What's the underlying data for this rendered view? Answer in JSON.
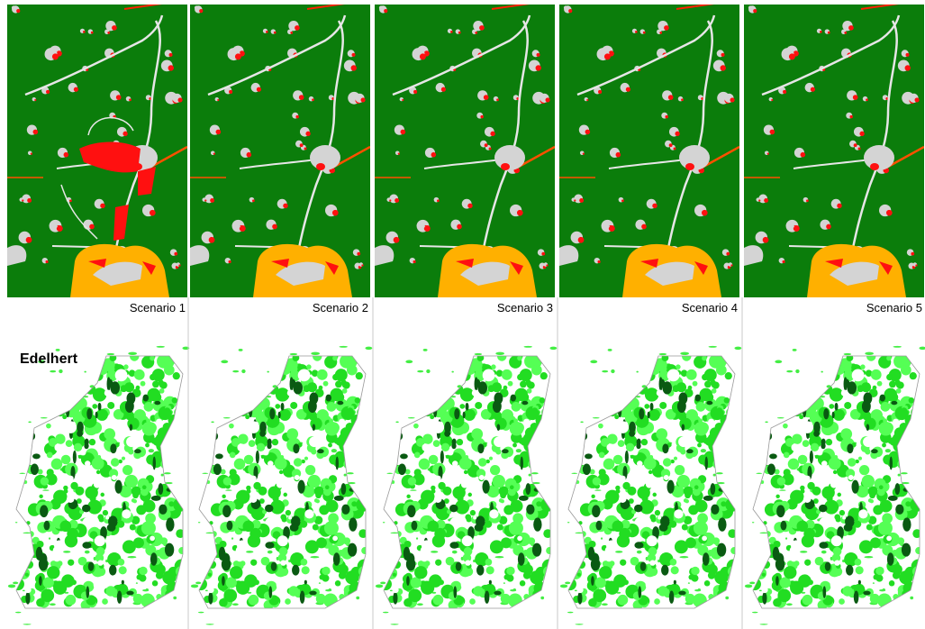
{
  "species_label": "Edelhert",
  "panels": [
    {
      "label": "Scenario 1"
    },
    {
      "label": "Scenario 2"
    },
    {
      "label": "Scenario 3"
    },
    {
      "label": "Scenario 4"
    },
    {
      "label": "Scenario 5"
    }
  ]
}
